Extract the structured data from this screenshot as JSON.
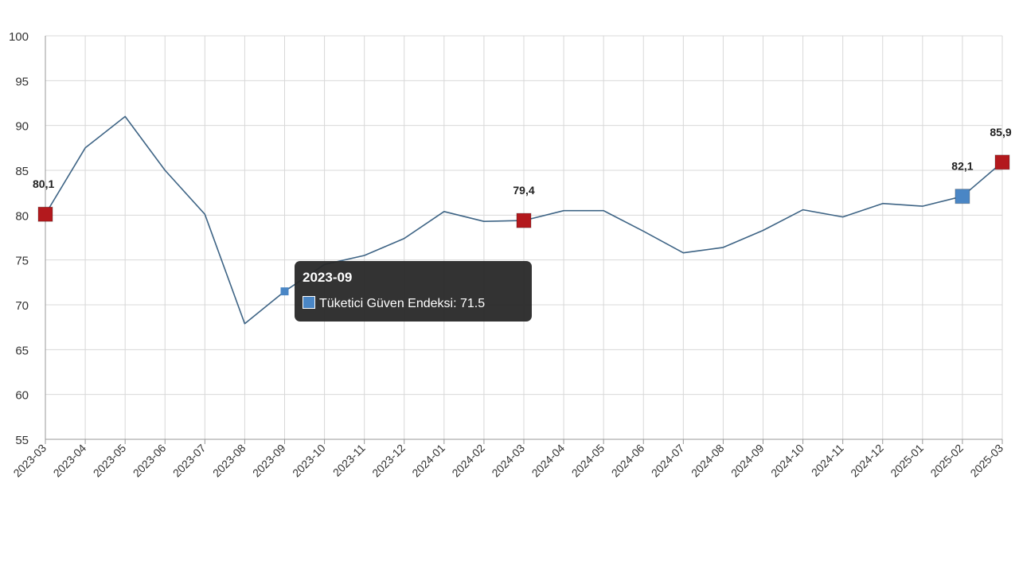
{
  "chart_data": {
    "type": "line",
    "categories": [
      "2023-03",
      "2023-04",
      "2023-05",
      "2023-06",
      "2023-07",
      "2023-08",
      "2023-09",
      "2023-10",
      "2023-11",
      "2023-12",
      "2024-01",
      "2024-02",
      "2024-03",
      "2024-04",
      "2024-05",
      "2024-06",
      "2024-07",
      "2024-08",
      "2024-09",
      "2024-10",
      "2024-11",
      "2024-12",
      "2025-01",
      "2025-02",
      "2025-03"
    ],
    "series": [
      {
        "name": "Tüketici Güven Endeksi",
        "values": [
          80.1,
          87.5,
          91.0,
          85.0,
          80.1,
          67.9,
          71.5,
          74.5,
          75.5,
          77.4,
          80.4,
          79.3,
          79.4,
          80.5,
          80.5,
          78.2,
          75.8,
          76.4,
          78.3,
          80.6,
          79.8,
          81.3,
          81.0,
          82.1,
          85.9
        ],
        "color": "#3e6485"
      }
    ],
    "ylim": [
      55,
      100
    ],
    "yticks": [
      55,
      60,
      65,
      70,
      75,
      80,
      85,
      90,
      95,
      100
    ],
    "grid": true,
    "highlighted_points": [
      {
        "category": "2023-03",
        "label": "80,1",
        "color": "#b3191d"
      },
      {
        "category": "2024-03",
        "label": "79,4",
        "color": "#b3191d"
      },
      {
        "category": "2025-02",
        "label": "82,1",
        "color": "#4a86c5"
      },
      {
        "category": "2025-03",
        "label": "85,9",
        "color": "#b3191d"
      }
    ],
    "hover_point": {
      "category": "2023-09",
      "color": "#4a86c5"
    }
  },
  "tooltip": {
    "title": "2023-09",
    "series_label": "Tüketici Güven Endeksi: 71.5"
  }
}
